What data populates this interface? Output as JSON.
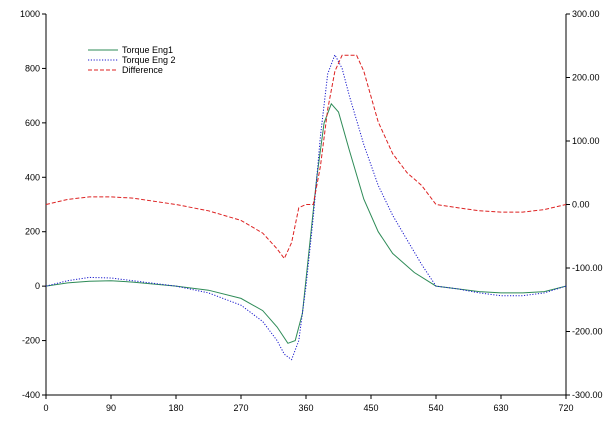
{
  "chart_data": {
    "type": "line",
    "legend": {
      "placement": "top-left"
    },
    "x_axis": {
      "range": [
        0,
        720
      ],
      "ticks": [
        "0",
        "90",
        "180",
        "270",
        "360",
        "450",
        "540",
        "630",
        "720"
      ]
    },
    "y_left": {
      "range": [
        -400,
        1000
      ],
      "ticks": [
        "-400",
        "-200",
        "0",
        "200",
        "400",
        "600",
        "800",
        "1000"
      ]
    },
    "y_right": {
      "range": [
        -300,
        300
      ],
      "ticks": [
        "-300.00",
        "-200.00",
        "-100.00",
        "0.00",
        "100.00",
        "200.00",
        "300.00"
      ]
    },
    "grid": false,
    "series": [
      {
        "name": "Torque Eng1",
        "axis": "left",
        "color": "#2e8b57",
        "dash": "solid",
        "x": [
          0,
          30,
          60,
          90,
          120,
          180,
          225,
          270,
          300,
          320,
          335,
          345,
          355,
          365,
          375,
          385,
          395,
          405,
          420,
          440,
          460,
          480,
          510,
          540,
          570,
          600,
          630,
          660,
          690,
          720
        ],
        "y": [
          0,
          12,
          18,
          20,
          15,
          0,
          -15,
          -45,
          -90,
          -150,
          -210,
          -200,
          -100,
          150,
          400,
          600,
          670,
          640,
          500,
          320,
          200,
          120,
          50,
          0,
          -10,
          -20,
          -25,
          -25,
          -20,
          0
        ]
      },
      {
        "name": "Torque Eng 2",
        "axis": "left",
        "color": "#1a1acd",
        "dash": "dotted",
        "x": [
          0,
          30,
          60,
          90,
          120,
          180,
          225,
          270,
          300,
          320,
          330,
          340,
          350,
          360,
          370,
          380,
          390,
          400,
          410,
          420,
          440,
          460,
          480,
          500,
          520,
          540,
          570,
          600,
          630,
          660,
          690,
          720
        ],
        "y": [
          0,
          20,
          32,
          30,
          20,
          0,
          -25,
          -70,
          -130,
          -200,
          -250,
          -270,
          -200,
          0,
          250,
          550,
          780,
          850,
          800,
          700,
          520,
          370,
          260,
          170,
          80,
          0,
          -10,
          -25,
          -35,
          -35,
          -25,
          0
        ]
      },
      {
        "name": "Difference",
        "axis": "right",
        "color": "#dd2222",
        "dash": "dashed",
        "x": [
          0,
          30,
          60,
          90,
          120,
          180,
          225,
          270,
          300,
          320,
          330,
          340,
          350,
          360,
          370,
          380,
          390,
          400,
          410,
          420,
          430,
          440,
          460,
          480,
          500,
          520,
          540,
          570,
          600,
          630,
          660,
          690,
          720
        ],
        "y": [
          0,
          8,
          12,
          12,
          10,
          0,
          -10,
          -25,
          -45,
          -70,
          -85,
          -60,
          -5,
          0,
          0,
          60,
          150,
          210,
          235,
          235,
          235,
          210,
          130,
          80,
          50,
          30,
          0,
          -5,
          -10,
          -12,
          -12,
          -8,
          0
        ]
      }
    ]
  }
}
